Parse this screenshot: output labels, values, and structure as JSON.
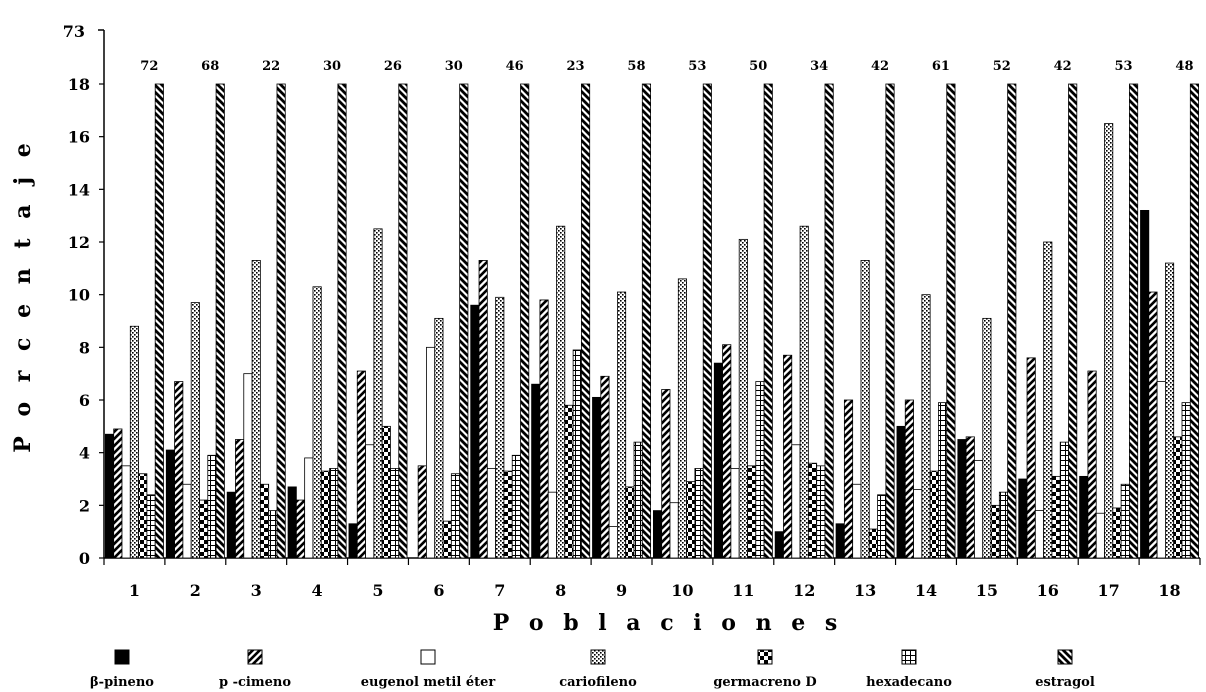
{
  "chart_data": {
    "type": "bar",
    "xlabel": "P o b l a c i o n e s",
    "ylabel": "P o r c e n t a j e",
    "y_break_label": "73",
    "ylim": [
      0,
      18
    ],
    "y_ticks": [
      "0",
      "2",
      "4",
      "6",
      "8",
      "10",
      "12",
      "14",
      "16",
      "18"
    ],
    "grid": false,
    "legend_position": "bottom",
    "categories": [
      "1",
      "2",
      "3",
      "4",
      "5",
      "6",
      "7",
      "8",
      "9",
      "10",
      "11",
      "12",
      "13",
      "14",
      "15",
      "16",
      "17",
      "18"
    ],
    "series": [
      {
        "name": "β-pineno",
        "pattern": "solid",
        "values": [
          4.7,
          4.1,
          2.5,
          2.7,
          1.3,
          0.0,
          9.6,
          6.6,
          6.1,
          1.8,
          7.4,
          1.0,
          1.3,
          5.0,
          4.5,
          3.0,
          3.1,
          13.2
        ]
      },
      {
        "name": "p -cimeno",
        "pattern": "diag-fwd",
        "values": [
          4.9,
          6.7,
          4.5,
          2.2,
          7.1,
          3.5,
          11.3,
          9.8,
          6.9,
          6.4,
          8.1,
          7.7,
          6.0,
          6.0,
          4.6,
          7.6,
          7.1,
          10.1
        ]
      },
      {
        "name": "eugenol metil éter",
        "pattern": "white",
        "values": [
          3.5,
          2.8,
          7.0,
          3.8,
          4.3,
          8.0,
          3.4,
          2.5,
          1.2,
          2.1,
          3.4,
          4.3,
          2.8,
          2.6,
          3.7,
          1.8,
          1.7,
          6.7
        ]
      },
      {
        "name": "cariofileno",
        "pattern": "dots",
        "values": [
          8.8,
          9.7,
          11.3,
          10.3,
          12.5,
          9.1,
          9.9,
          12.6,
          10.1,
          10.6,
          12.1,
          12.6,
          11.3,
          10.0,
          9.1,
          12.0,
          16.5,
          11.2
        ]
      },
      {
        "name": "germacreno D",
        "pattern": "checker",
        "values": [
          3.2,
          2.2,
          2.8,
          3.3,
          5.0,
          1.4,
          3.3,
          5.8,
          2.7,
          2.9,
          3.5,
          3.6,
          1.1,
          3.3,
          2.0,
          3.1,
          1.9,
          4.6
        ]
      },
      {
        "name": "hexadecano",
        "pattern": "grid",
        "values": [
          2.4,
          3.9,
          1.8,
          3.4,
          3.4,
          3.2,
          3.9,
          7.9,
          4.4,
          3.4,
          6.7,
          3.5,
          2.4,
          5.9,
          2.5,
          4.4,
          2.8,
          5.9
        ]
      },
      {
        "name": "estragol",
        "pattern": "diag-back",
        "values": [
          72,
          68,
          22,
          30,
          26,
          30,
          46,
          23,
          58,
          53,
          50,
          34,
          42,
          61,
          52,
          42,
          53,
          48
        ]
      }
    ],
    "top_labels": [
      "72",
      "68",
      "22",
      "30",
      "26",
      "30",
      "46",
      "23",
      "58",
      "53",
      "50",
      "34",
      "42",
      "61",
      "52",
      "42",
      "53",
      "48"
    ]
  }
}
